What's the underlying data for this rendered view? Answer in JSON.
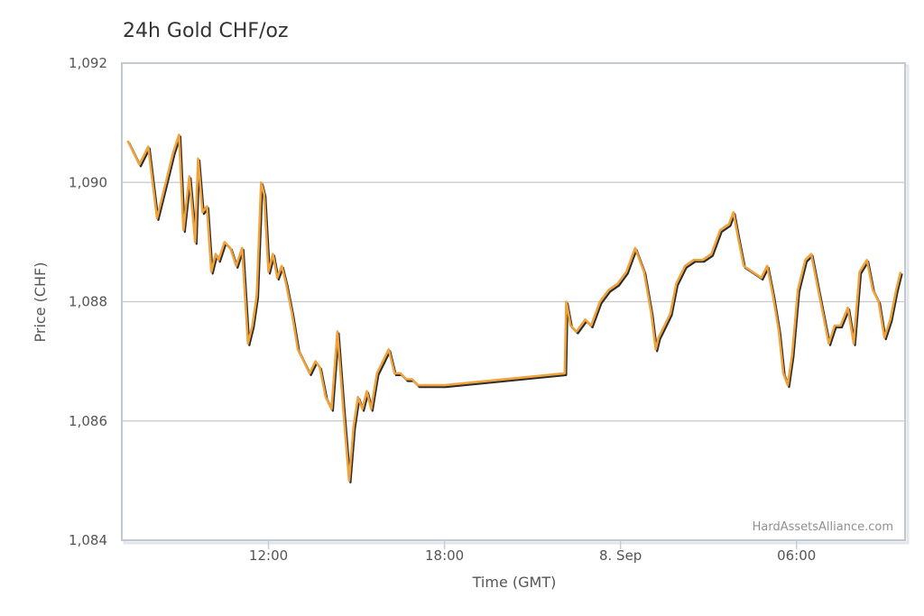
{
  "chart_data": {
    "type": "line",
    "title": "24h Gold CHF/oz",
    "xlabel": "Time (GMT)",
    "ylabel": "Price (CHF)",
    "ylim": [
      1084,
      1092
    ],
    "yticks": [
      1084,
      1086,
      1088,
      1090,
      1092
    ],
    "ytick_labels": [
      "1,084",
      "1,086",
      "1,088",
      "1,090",
      "1,092"
    ],
    "xlim": [
      7.0,
      33.7
    ],
    "xticks": [
      12,
      18,
      24,
      30
    ],
    "xtick_labels": [
      "12:00",
      "18:00",
      "8. Sep",
      "06:00"
    ],
    "grid": "horizontal",
    "credit": "HardAssetsAlliance.com",
    "colors": {
      "line": "#f0a33c",
      "shadow": "#2b2b2b",
      "grid": "#c8c8c8",
      "frame": "#c0c8d0"
    },
    "series": [
      {
        "x": [
          7.2,
          7.4,
          7.6,
          7.9,
          8.2,
          8.5,
          8.75,
          8.95,
          9.1,
          9.3,
          9.5,
          9.6,
          9.75,
          9.9,
          10.05,
          10.2,
          10.3,
          10.5,
          10.7,
          10.9,
          11.1,
          11.3,
          11.45,
          11.6,
          11.75,
          11.85,
          12.0,
          12.15,
          12.3,
          12.45,
          12.6,
          12.8,
          13.0,
          13.2,
          13.4,
          13.6,
          13.75,
          13.95,
          14.15,
          14.35,
          14.55,
          14.75,
          14.9,
          15.05,
          15.2,
          15.35,
          15.5,
          15.7,
          15.9,
          16.1,
          16.3,
          16.5,
          16.7,
          16.9,
          17.1,
          17.3,
          17.6,
          18.0,
          22.1,
          22.15,
          22.3,
          22.5,
          22.8,
          23.0,
          23.3,
          23.6,
          23.9,
          24.2,
          24.5,
          24.8,
          25.05,
          25.2,
          25.3,
          25.5,
          25.7,
          25.9,
          26.2,
          26.5,
          26.8,
          27.1,
          27.4,
          27.7,
          27.85,
          28.0,
          28.2,
          28.5,
          28.8,
          29.0,
          29.2,
          29.4,
          29.55,
          29.7,
          29.85,
          30.05,
          30.3,
          30.5,
          30.7,
          30.9,
          31.1,
          31.3,
          31.5,
          31.75,
          31.95,
          32.15,
          32.4,
          32.6,
          32.8,
          33.0,
          33.2,
          33.4,
          33.55
        ],
        "y": [
          1090.7,
          1090.5,
          1090.3,
          1090.6,
          1089.4,
          1090.0,
          1090.5,
          1090.8,
          1089.2,
          1090.1,
          1089.0,
          1090.4,
          1089.5,
          1089.6,
          1088.5,
          1088.8,
          1088.7,
          1089.0,
          1088.9,
          1088.6,
          1088.9,
          1087.3,
          1087.6,
          1088.1,
          1090.0,
          1089.8,
          1088.5,
          1088.8,
          1088.4,
          1088.6,
          1088.3,
          1087.8,
          1087.2,
          1087.0,
          1086.8,
          1087.0,
          1086.9,
          1086.4,
          1086.2,
          1087.5,
          1086.2,
          1085.0,
          1085.9,
          1086.4,
          1086.2,
          1086.5,
          1086.2,
          1086.8,
          1087.0,
          1087.2,
          1086.8,
          1086.8,
          1086.7,
          1086.7,
          1086.6,
          1086.6,
          1086.6,
          1086.6,
          1086.8,
          1088.0,
          1087.6,
          1087.5,
          1087.7,
          1087.6,
          1088.0,
          1088.2,
          1088.3,
          1088.5,
          1088.9,
          1088.5,
          1087.8,
          1087.2,
          1087.4,
          1087.6,
          1087.8,
          1088.3,
          1088.6,
          1088.7,
          1088.7,
          1088.8,
          1089.2,
          1089.3,
          1089.5,
          1089.1,
          1088.6,
          1088.5,
          1088.4,
          1088.6,
          1088.1,
          1087.5,
          1086.8,
          1086.6,
          1087.1,
          1088.2,
          1088.7,
          1088.8,
          1088.3,
          1087.8,
          1087.3,
          1087.6,
          1087.6,
          1087.9,
          1087.3,
          1088.5,
          1088.7,
          1088.2,
          1088.0,
          1087.4,
          1087.7,
          1088.2,
          1088.5
        ]
      }
    ]
  }
}
